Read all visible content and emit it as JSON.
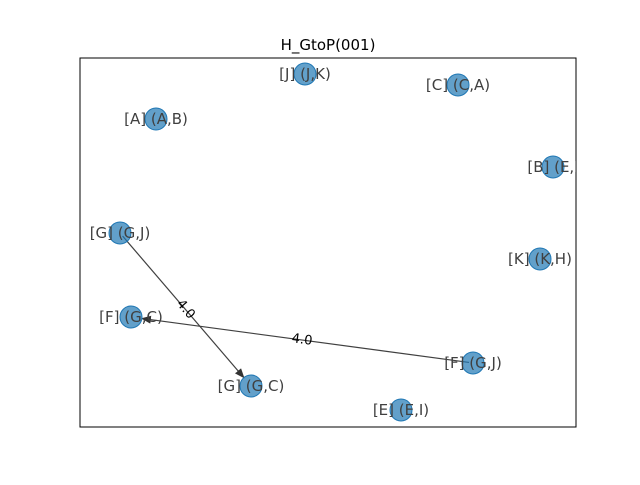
{
  "title": "H_GtoP(001)",
  "node_color": "#1f77b4",
  "edge_color": "#404040",
  "nodes": [
    {
      "id": "J",
      "label": "[J] (J,K)"
    },
    {
      "id": "C",
      "label": "[C] (C,A)"
    },
    {
      "id": "A",
      "label": "[A] (A,B)"
    },
    {
      "id": "B",
      "label": "[B] (E,I"
    },
    {
      "id": "G1",
      "label": "[G] (G,J)"
    },
    {
      "id": "K",
      "label": "[K] (K,H)"
    },
    {
      "id": "F1",
      "label": "[F] (G,C)"
    },
    {
      "id": "F2",
      "label": "[F] (G,J)"
    },
    {
      "id": "G2",
      "label": "[G] (G,C)"
    },
    {
      "id": "E",
      "label": "[E] (E,I)"
    }
  ],
  "edges": [
    {
      "from": "G1",
      "to": "G2",
      "label": "4.0"
    },
    {
      "from": "F2",
      "to": "F1",
      "label": "4.0"
    }
  ]
}
